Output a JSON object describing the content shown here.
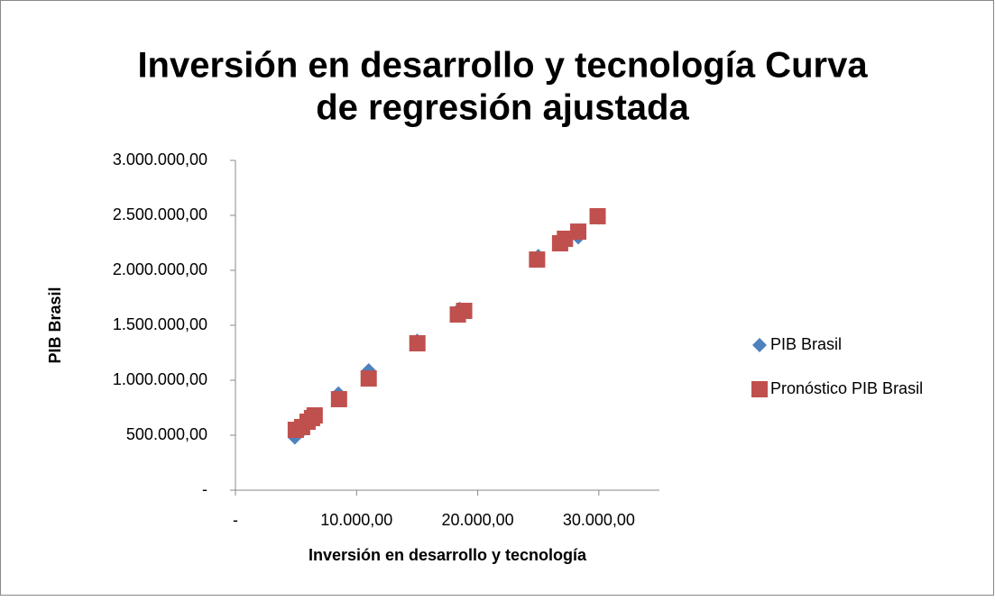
{
  "chart_data": {
    "type": "scatter",
    "title": "Inversión en desarrollo y tecnología Curva de regresión ajustada",
    "title_lines": [
      "Inversión en desarrollo y tecnología Curva",
      "de regresión ajustada"
    ],
    "x_label": "Inversión en desarrollo y tecnología",
    "y_label": "PIB Brasil",
    "xlim": [
      0,
      35000
    ],
    "xticks": [
      {
        "value": 0,
        "label": "-"
      },
      {
        "value": 10000,
        "label": "10.000,00"
      },
      {
        "value": 20000,
        "label": "20.000,00"
      },
      {
        "value": 30000,
        "label": "30.000,00"
      }
    ],
    "ylim": [
      0,
      3000000
    ],
    "yticks": [
      {
        "value": 0,
        "label": "-"
      },
      {
        "value": 500000,
        "label": "500.000,00"
      },
      {
        "value": 1000000,
        "label": "1.000.000,00"
      },
      {
        "value": 1500000,
        "label": "1.500.000,00"
      },
      {
        "value": 2000000,
        "label": "2.000.000,00"
      },
      {
        "value": 2500000,
        "label": "2.500.000,00"
      },
      {
        "value": 3000000,
        "label": "3.000.000,00"
      }
    ],
    "grid": false,
    "legend": "right",
    "series": [
      {
        "name": "PIB Brasil",
        "color": "#4f81bd",
        "marker": "diamond",
        "x": [
          4900,
          5500,
          6000,
          8500,
          11000,
          15000,
          18500,
          25000,
          27000,
          28300,
          30000
        ],
        "values": [
          480000,
          540000,
          600000,
          880000,
          1090000,
          1360000,
          1650000,
          2130000,
          2260000,
          2300000,
          2480000
        ]
      },
      {
        "name": "Pronóstico PIB Brasil",
        "color": "#c0504d",
        "marker": "square",
        "x": [
          4980,
          5500,
          5950,
          6320,
          6540,
          8550,
          11000,
          15020,
          18360,
          18880,
          24900,
          26800,
          27200,
          28300,
          29900
        ],
        "values": [
          549000,
          574000,
          623000,
          656000,
          680000,
          828000,
          1016000,
          1336000,
          1598000,
          1631000,
          2098000,
          2246000,
          2287000,
          2352000,
          2492000
        ]
      }
    ]
  }
}
